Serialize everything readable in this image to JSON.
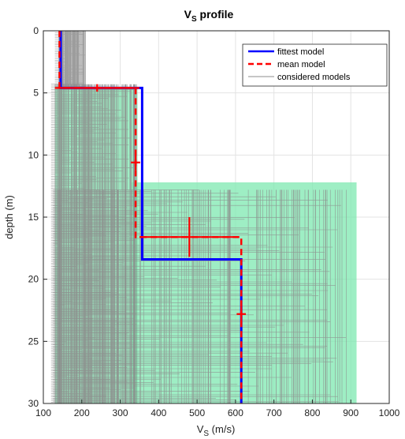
{
  "chart_data": {
    "type": "line",
    "title": "V_S profile",
    "title_main": "V",
    "title_sub": "S",
    "title_rest": " profile",
    "xlabel_main": "V",
    "xlabel_sub": "S",
    "xlabel_rest": " (m/s)",
    "ylabel": "depth (m)",
    "xlim": [
      100,
      1000
    ],
    "ylim": [
      0,
      30
    ],
    "y_reversed": true,
    "grid": true,
    "xticks": [
      100,
      200,
      300,
      400,
      500,
      600,
      700,
      800,
      900,
      1000
    ],
    "yticks": [
      0,
      5,
      10,
      15,
      20,
      25,
      30
    ],
    "legend_position": "top-right",
    "colors": {
      "fittest": "#0000ff",
      "mean": "#ff0000",
      "considered": "#8c8c8c",
      "band": "#7ee8b0",
      "grid": "#e3e3e3"
    },
    "band_regions": [
      {
        "vs_min": 130,
        "vs_max": 345,
        "depth_top": 4.5,
        "depth_bottom": 30
      },
      {
        "vs_min": 330,
        "vs_max": 915,
        "depth_top": 12.2,
        "depth_bottom": 30
      }
    ],
    "considered_layers": [
      {
        "vs_min": 140,
        "vs_max": 210,
        "depth_top": 0,
        "depth_bottom": 4.6
      },
      {
        "vs_min": 130,
        "vs_max": 345,
        "depth_top": 4.3,
        "depth_bottom": 30
      },
      {
        "vs_min": 135,
        "vs_max": 900,
        "depth_top": 12.8,
        "depth_bottom": 30
      }
    ],
    "series": [
      {
        "name": "fittest model",
        "profile": [
          {
            "vs": 145,
            "depth": 0
          },
          {
            "vs": 145,
            "depth": 4.6
          },
          {
            "vs": 357,
            "depth": 4.6
          },
          {
            "vs": 357,
            "depth": 18.4
          },
          {
            "vs": 615,
            "depth": 18.4
          },
          {
            "vs": 615,
            "depth": 30
          }
        ]
      },
      {
        "name": "mean model",
        "profile": [
          {
            "vs": 142,
            "depth": 0
          },
          {
            "vs": 142,
            "depth": 4.6
          },
          {
            "vs": 340,
            "depth": 4.6
          },
          {
            "vs": 340,
            "depth": 16.6
          },
          {
            "vs": 615,
            "depth": 16.6
          },
          {
            "vs": 615,
            "depth": 30
          }
        ],
        "error_bars": [
          {
            "vs": 240,
            "depth": 4.6,
            "vs_err": 110,
            "depth_err": 0.3
          },
          {
            "vs": 340,
            "depth": 10.6,
            "vs_err": 12,
            "depth_err": 0.6
          },
          {
            "vs": 480,
            "depth": 16.6,
            "vs_err": 130,
            "depth_err": 1.6
          },
          {
            "vs": 615,
            "depth": 22.8,
            "vs_err": 12,
            "depth_err": 0.6
          }
        ]
      },
      {
        "name": "considered models"
      }
    ]
  }
}
